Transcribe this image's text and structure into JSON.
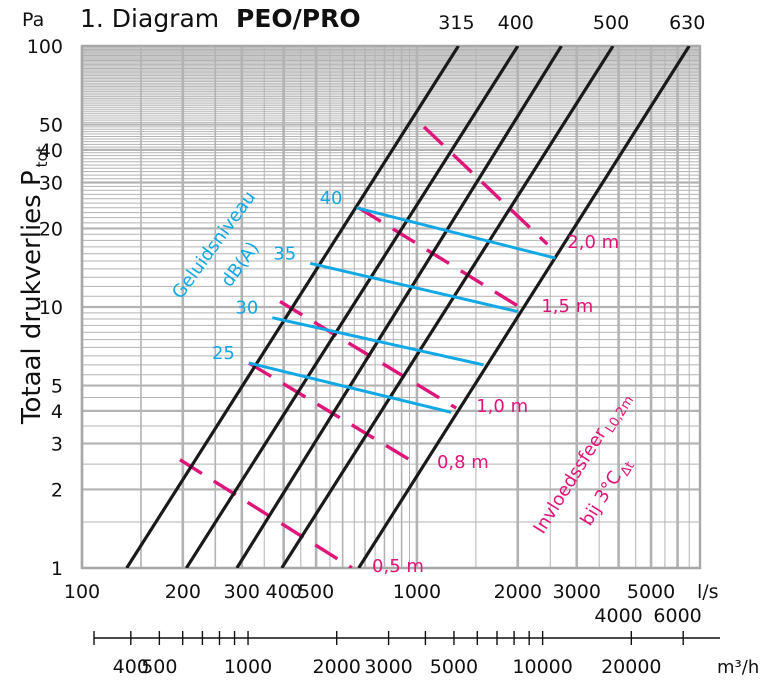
{
  "chart_data": {
    "type": "line",
    "title": "1. Diagram",
    "title_bold": "PEO/PRO",
    "y_unit": "Pa",
    "ylabel": "Totaal drukverlies P",
    "ylabel_sub": "tot",
    "x_unit": "l/s",
    "x2_unit": "m³/h",
    "xscale": "log",
    "yscale": "log",
    "xlim": [
      100,
      7000
    ],
    "ylim": [
      1,
      100
    ],
    "grid": true,
    "y_ticks": [
      "1",
      "2",
      "3",
      "4",
      "5",
      "10",
      "20",
      "30",
      "40",
      "50",
      "100"
    ],
    "x_ticks_row1": [
      "100",
      "200",
      "300",
      "400",
      "500",
      "1000",
      "2000",
      "3000",
      "5000"
    ],
    "x_ticks_row2": [
      "4000",
      "6000"
    ],
    "x2_ticks": [
      "400",
      "500",
      "1000",
      "2000",
      "3000",
      "5000",
      "10000",
      "20000"
    ],
    "diameter_series": [
      {
        "name": "315",
        "x": [
          136,
          1330
        ],
        "y": [
          1,
          100
        ]
      },
      {
        "name": "400",
        "x": [
          205,
          2000
        ],
        "y": [
          1,
          100
        ]
      },
      {
        "name": "500",
        "x": [
          395,
          3850
        ],
        "y": [
          1,
          100
        ]
      },
      {
        "name": "630",
        "x": [
          670,
          6500
        ],
        "y": [
          1,
          100
        ]
      },
      {
        "name": "",
        "x": [
          290,
          2700
        ],
        "y": [
          1,
          100
        ]
      }
    ],
    "sound_series_label": "Geluidsniveau",
    "sound_series_unit": "dB(A)",
    "sound_series": [
      {
        "name": "25",
        "x": [
          315,
          1265
        ],
        "y": [
          6.1,
          3.95
        ]
      },
      {
        "name": "30",
        "x": [
          370,
          1580
        ],
        "y": [
          9.1,
          6.0
        ]
      },
      {
        "name": "35",
        "x": [
          480,
          2000
        ],
        "y": [
          14.7,
          9.6
        ]
      },
      {
        "name": "40",
        "x": [
          660,
          2590
        ],
        "y": [
          24.0,
          15.4
        ]
      }
    ],
    "throw_series_label": "Invloedssfeer",
    "throw_series_sub": "L0,2m",
    "throw_series_label2": "bij 3°C",
    "throw_series_sub2": "Δt",
    "throw_series": [
      {
        "name": "0,5 m",
        "x": [
          196,
          640
        ],
        "y": [
          2.6,
          1.0
        ]
      },
      {
        "name": "0,8 m",
        "x": [
          315,
          1000
        ],
        "y": [
          6.1,
          2.5
        ]
      },
      {
        "name": "1,0 m",
        "x": [
          390,
          1310
        ],
        "y": [
          10.5,
          4.1
        ]
      },
      {
        "name": "1,5 m",
        "x": [
          670,
          2050
        ],
        "y": [
          24.0,
          9.9
        ]
      },
      {
        "name": "2,0 m",
        "x": [
          1050,
          2450
        ],
        "y": [
          49.0,
          17.4
        ]
      }
    ]
  }
}
